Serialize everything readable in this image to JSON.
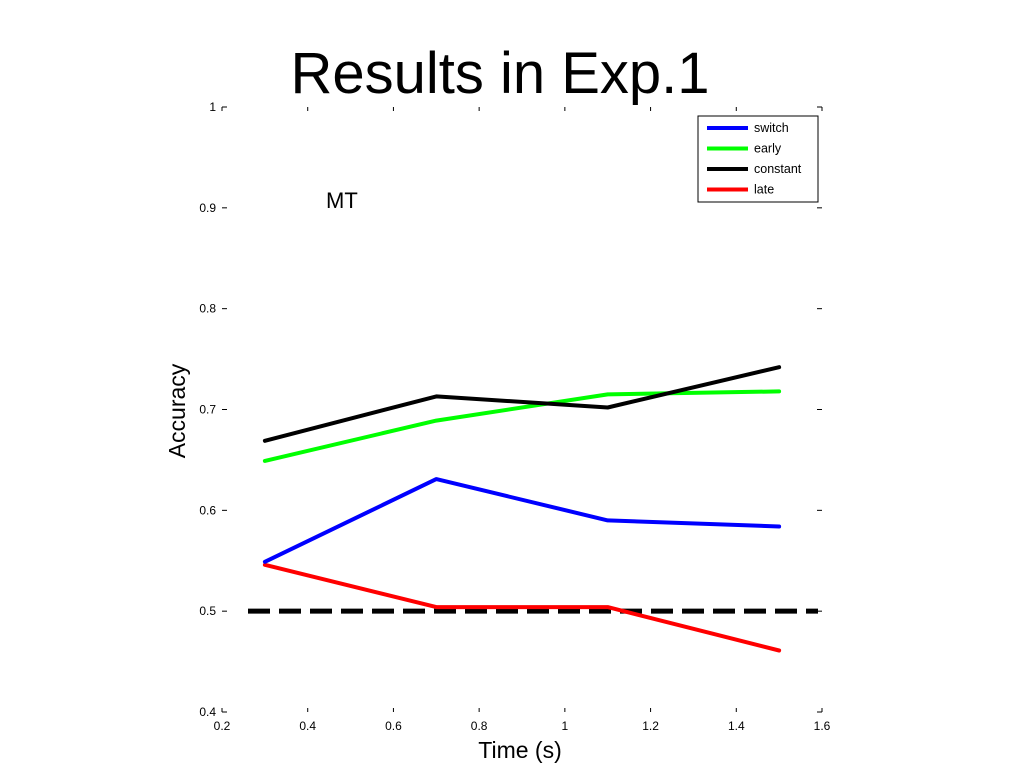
{
  "slide": {
    "title": "Results in Exp.1"
  },
  "chart_data": {
    "type": "line",
    "title": "",
    "annotation": "MT",
    "xlabel": "Time (s)",
    "ylabel": "Accuracy",
    "xlim": [
      0.2,
      1.6
    ],
    "ylim": [
      0.4,
      1.0
    ],
    "xticks": [
      "0.2",
      "0.4",
      "0.6",
      "0.8",
      "1",
      "1.2",
      "1.4",
      "1.6"
    ],
    "yticks": [
      "0.4",
      "0.5",
      "0.6",
      "0.7",
      "0.8",
      "0.9",
      "1"
    ],
    "grid": false,
    "legend_position": "top-right",
    "x": [
      0.3,
      0.7,
      1.1,
      1.5
    ],
    "series": [
      {
        "name": "switch",
        "color": "#0000ff",
        "values": [
          0.549,
          0.631,
          0.59,
          0.584
        ]
      },
      {
        "name": "early",
        "color": "#00ff00",
        "values": [
          0.649,
          0.689,
          0.715,
          0.718
        ]
      },
      {
        "name": "constant",
        "color": "#000000",
        "values": [
          0.669,
          0.713,
          0.702,
          0.742
        ]
      },
      {
        "name": "late",
        "color": "#ff0000",
        "values": [
          0.546,
          0.504,
          0.504,
          0.461
        ]
      }
    ],
    "reference_line": {
      "y": 0.5,
      "x_range": [
        0.2,
        1.6
      ],
      "style": "dashed",
      "color": "#000000"
    }
  }
}
